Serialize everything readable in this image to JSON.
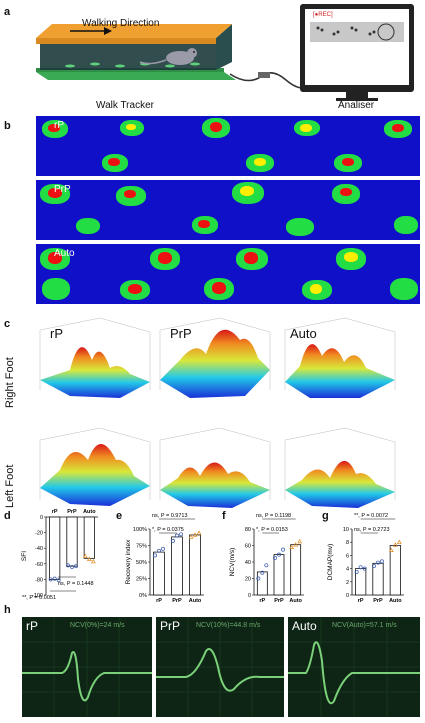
{
  "panel_labels": [
    "a",
    "b",
    "c",
    "d",
    "e",
    "f",
    "g",
    "h"
  ],
  "panel_a": {
    "walk_direction": "Walking Direction",
    "rec_label": "[●REC]",
    "left_caption": "Walk Tracker",
    "right_caption": "Analiser",
    "colors": {
      "top": "#f0a030",
      "base": "#3aaa55",
      "screen": "#d8d8d8"
    }
  },
  "panel_b": {
    "rows": [
      {
        "label": "rP"
      },
      {
        "label": "PrP"
      },
      {
        "label": "Auto"
      }
    ],
    "colors": {
      "background": "#1010c8",
      "green": "#22dd44",
      "yellow": "#ffee00",
      "red": "#ee1111"
    }
  },
  "panel_c": {
    "columns": [
      "rP",
      "PrP",
      "Auto"
    ],
    "rows": [
      "Right Foot",
      "Left Foot"
    ]
  },
  "chart_data": [
    {
      "panel": "d",
      "type": "bar",
      "categories": [
        "rP",
        "PrP",
        "Auto"
      ],
      "values": [
        -80,
        -63,
        -53
      ],
      "points": [
        [
          -80,
          -79,
          -81
        ],
        [
          -62,
          -64,
          -63
        ],
        [
          -50,
          -54,
          -57
        ]
      ],
      "point_colors": [
        "#3355aa",
        "#3355aa",
        "#e08a20"
      ],
      "ylabel": "SFI",
      "ylim": [
        -100,
        0
      ],
      "yticks": [
        0,
        -20,
        -40,
        -60,
        -80,
        -100
      ],
      "annotations": [
        "ns, P = 0.1448",
        "**, P = 0.0051"
      ]
    },
    {
      "panel": "e",
      "type": "bar",
      "categories": [
        "rP",
        "PrP",
        "Auto"
      ],
      "values": [
        65,
        88,
        91
      ],
      "points": [
        [
          60,
          67,
          70
        ],
        [
          82,
          90,
          92
        ],
        [
          88,
          91,
          94
        ]
      ],
      "point_colors": [
        "#3355aa",
        "#3355aa",
        "#e08a20"
      ],
      "ylabel": "Recovery index",
      "ylim": [
        0,
        100
      ],
      "yticks": [
        "0%",
        "25%",
        "50%",
        "75%",
        "100%"
      ],
      "annotations": [
        "ns, P = 0.9713",
        "*, P = 0.0375"
      ]
    },
    {
      "panel": "f",
      "type": "bar",
      "categories": [
        "rP",
        "PrP",
        "Auto"
      ],
      "values": [
        28,
        49,
        61
      ],
      "points": [
        [
          20,
          27,
          36
        ],
        [
          45,
          49,
          55
        ],
        [
          58,
          61,
          65
        ]
      ],
      "point_colors": [
        "#3355aa",
        "#3355aa",
        "#e08a20"
      ],
      "ylabel": "NCV(m/s)",
      "ylim": [
        0,
        80
      ],
      "yticks": [
        0,
        20,
        40,
        60,
        80
      ],
      "annotations": [
        "ns, P = 0.1198",
        "*, P = 0.0153"
      ]
    },
    {
      "panel": "g",
      "type": "bar",
      "categories": [
        "rP",
        "PrP",
        "Auto"
      ],
      "values": [
        4.0,
        4.8,
        7.5
      ],
      "points": [
        [
          3.5,
          4.2,
          4.0
        ],
        [
          4.4,
          4.9,
          5.1
        ],
        [
          6.8,
          7.6,
          8.0
        ]
      ],
      "point_colors": [
        "#3355aa",
        "#3355aa",
        "#e08a20"
      ],
      "ylabel": "DCMAP(mv)",
      "ylim": [
        0,
        10
      ],
      "yticks": [
        0,
        2,
        4,
        6,
        8,
        10
      ],
      "annotations": [
        "**, P = 0.0072",
        "ns, P = 0.2723"
      ]
    }
  ],
  "panel_h": {
    "traces": [
      {
        "label": "rP",
        "ncv": "NCV(0%)=24 m/s"
      },
      {
        "label": "PrP",
        "ncv": "NCV(10%)=44.8 m/s"
      },
      {
        "label": "Auto",
        "ncv": "NCV(Auto)=57.1 m/s"
      }
    ],
    "colors": {
      "background": "#0e2414",
      "trace": "#7ad17a",
      "grid": "#1f4a28"
    }
  }
}
